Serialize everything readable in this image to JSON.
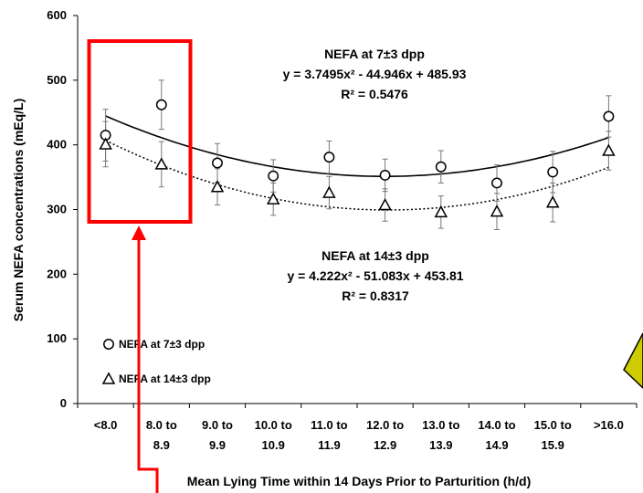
{
  "chart_data": {
    "type": "scatter",
    "xlabel": "Mean Lying Time within 14 Days Prior to Parturition (h/d)",
    "ylabel": "Serum NEFA concentrations (mEq/L)",
    "ylim": [
      0,
      600
    ],
    "yticks": [
      "0",
      "100",
      "200",
      "300",
      "400",
      "500",
      "600"
    ],
    "categories": [
      [
        "<8.0",
        ""
      ],
      [
        "8.0 to",
        "8.9"
      ],
      [
        "9.0 to",
        "9.9"
      ],
      [
        "10.0 to",
        "10.9"
      ],
      [
        "11.0 to",
        "11.9"
      ],
      [
        "12.0 to",
        "12.9"
      ],
      [
        "13.0 to",
        "13.9"
      ],
      [
        "14.0 to",
        "14.9"
      ],
      [
        "15.0 to",
        "15.9"
      ],
      [
        ">16.0",
        ""
      ]
    ],
    "series": [
      {
        "name": "NEFA at 7±3 dpp",
        "marker": "circle",
        "values": [
          415,
          462,
          372,
          352,
          381,
          353,
          366,
          341,
          358,
          444
        ],
        "errors": [
          40,
          38,
          30,
          25,
          25,
          25,
          25,
          28,
          32,
          32
        ],
        "trend": {
          "a": 3.7495,
          "b": -44.946,
          "c": 485.93,
          "style": "solid"
        },
        "annotation": [
          "NEFA at 7±3 dpp",
          "y = 3.7495x² - 44.946x + 485.93",
          "R² = 0.5476"
        ]
      },
      {
        "name": "NEFA at 14±3 dpp",
        "marker": "triangle",
        "values": [
          401,
          370,
          335,
          316,
          326,
          307,
          296,
          297,
          311,
          391
        ],
        "errors": [
          35,
          35,
          28,
          25,
          25,
          25,
          25,
          28,
          30,
          30
        ],
        "trend": {
          "a": 4.222,
          "b": -51.083,
          "c": 453.81,
          "style": "dotted"
        },
        "annotation": [
          "NEFA at 14±3 dpp",
          "y = 4.222x² - 51.083x + 453.81",
          "R² = 0.8317"
        ]
      }
    ],
    "legend_position": "bottom-left",
    "grid": false
  },
  "colors": {
    "highlight": "#ff0000",
    "wedge": "#cccc00"
  }
}
